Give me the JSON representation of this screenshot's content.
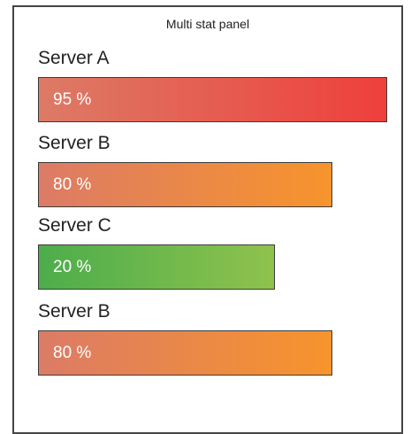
{
  "panel": {
    "title": "Multi stat panel"
  },
  "stats": [
    {
      "label": "Server A",
      "value_text": "95 %",
      "percent": 95,
      "color_start": "#dc7b66",
      "color_end": "#ef3f3c"
    },
    {
      "label": "Server B",
      "value_text": "80 %",
      "percent": 80,
      "color_start": "#dc7b66",
      "color_end": "#f7942c"
    },
    {
      "label": "Server C",
      "value_text": "20 %",
      "percent": 20,
      "color_start": "#4cad4b",
      "color_end": "#8fc24d"
    },
    {
      "label": "Server B",
      "value_text": "80 %",
      "percent": 80,
      "color_start": "#dc7b66",
      "color_end": "#f7942c"
    }
  ]
}
